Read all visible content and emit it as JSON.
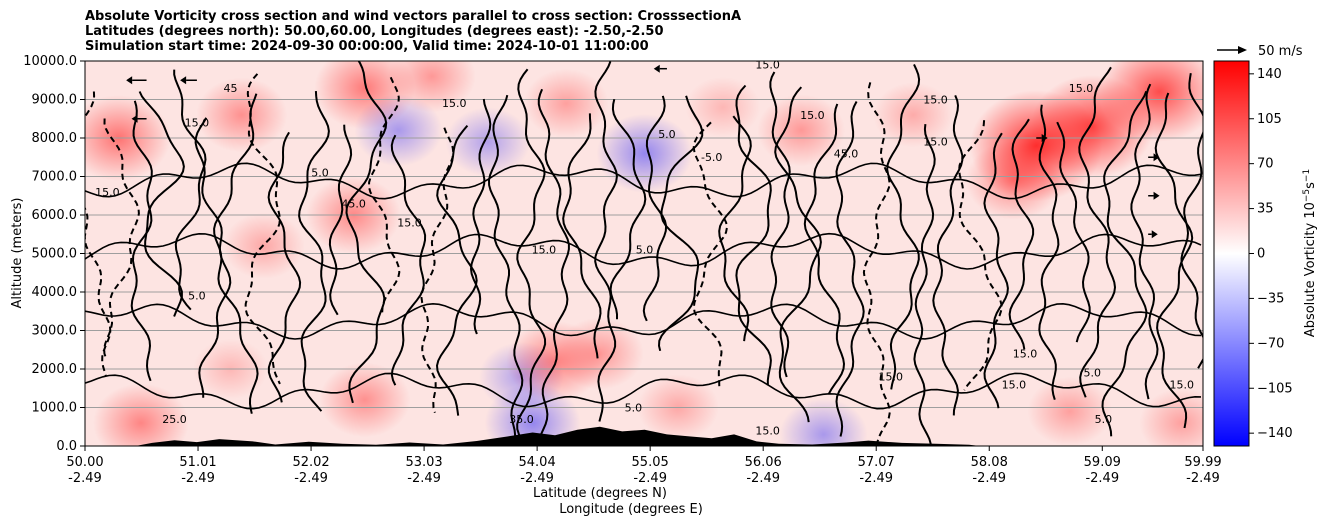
{
  "title_lines": [
    "Absolute Vorticity cross section and wind vectors parallel to cross section: CrosssectionA",
    "Latitudes (degrees north): 50.00,60.00, Longitudes (degrees east): -2.50,-2.50",
    "Simulation start time: 2024-09-30 00:00:00, Valid time: 2024-10-01 11:00:00"
  ],
  "chart_data": {
    "type": "heatmap",
    "ylabel": "Altitude (meters)",
    "xlabel_1": "Latitude (degrees N)",
    "xlabel_2": "Longitude (degrees E)",
    "ylim": [
      0,
      10000
    ],
    "xlim": [
      50.0,
      59.99
    ],
    "y_ticks": [
      {
        "v": 0,
        "label": "0.0"
      },
      {
        "v": 1000,
        "label": "1000.0"
      },
      {
        "v": 2000,
        "label": "2000.0"
      },
      {
        "v": 3000,
        "label": "3000.0"
      },
      {
        "v": 4000,
        "label": "4000.0"
      },
      {
        "v": 5000,
        "label": "5000.0"
      },
      {
        "v": 6000,
        "label": "6000.0"
      },
      {
        "v": 7000,
        "label": "7000.0"
      },
      {
        "v": 8000,
        "label": "8000.0"
      },
      {
        "v": 9000,
        "label": "9000.0"
      },
      {
        "v": 10000,
        "label": "10000.0"
      }
    ],
    "x_ticks": [
      {
        "v": 50.0,
        "lat": "50.00",
        "lon": "-2.49"
      },
      {
        "v": 51.01,
        "lat": "51.01",
        "lon": "-2.49"
      },
      {
        "v": 52.02,
        "lat": "52.02",
        "lon": "-2.49"
      },
      {
        "v": 53.03,
        "lat": "53.03",
        "lon": "-2.49"
      },
      {
        "v": 54.04,
        "lat": "54.04",
        "lon": "-2.49"
      },
      {
        "v": 55.05,
        "lat": "55.05",
        "lon": "-2.49"
      },
      {
        "v": 56.06,
        "lat": "56.06",
        "lon": "-2.49"
      },
      {
        "v": 57.07,
        "lat": "57.07",
        "lon": "-2.49"
      },
      {
        "v": 58.08,
        "lat": "58.08",
        "lon": "-2.49"
      },
      {
        "v": 59.09,
        "lat": "59.09",
        "lon": "-2.49"
      },
      {
        "v": 59.99,
        "lat": "59.99",
        "lon": "-2.49"
      }
    ],
    "colorbar": {
      "label": "Absolute Vorticity 10^-5 s^-1",
      "range": [
        -150,
        150
      ],
      "ticks": [
        {
          "v": 140,
          "label": "140"
        },
        {
          "v": 105,
          "label": "105"
        },
        {
          "v": 70,
          "label": "70"
        },
        {
          "v": 35,
          "label": "35"
        },
        {
          "v": 0,
          "label": "0"
        },
        {
          "v": -35,
          "label": "−35"
        },
        {
          "v": -70,
          "label": "−70"
        },
        {
          "v": -105,
          "label": "−105"
        },
        {
          "v": -140,
          "label": "−140"
        }
      ],
      "color_negative": "#0000ff",
      "color_zero": "#ffffff",
      "color_positive": "#ff0000"
    },
    "wind_legend": "50 m/s",
    "vorticity_blobs": [
      {
        "x": 50.3,
        "y": 8000,
        "v": 30
      },
      {
        "x": 51.4,
        "y": 8600,
        "v": 22
      },
      {
        "x": 52.5,
        "y": 9300,
        "v": 28
      },
      {
        "x": 52.8,
        "y": 8200,
        "v": -20
      },
      {
        "x": 53.1,
        "y": 9600,
        "v": 20
      },
      {
        "x": 53.6,
        "y": 7900,
        "v": -18
      },
      {
        "x": 54.3,
        "y": 8900,
        "v": 18
      },
      {
        "x": 55.0,
        "y": 7600,
        "v": -25
      },
      {
        "x": 55.7,
        "y": 8800,
        "v": 12
      },
      {
        "x": 56.4,
        "y": 8200,
        "v": 20
      },
      {
        "x": 57.4,
        "y": 8600,
        "v": 15
      },
      {
        "x": 58.3,
        "y": 6900,
        "v": 25
      },
      {
        "x": 58.5,
        "y": 7800,
        "v": 48
      },
      {
        "x": 59.0,
        "y": 8300,
        "v": 42
      },
      {
        "x": 59.6,
        "y": 9200,
        "v": 40
      },
      {
        "x": 52.4,
        "y": 6000,
        "v": 24
      },
      {
        "x": 51.6,
        "y": 5200,
        "v": 16
      },
      {
        "x": 53.9,
        "y": 1800,
        "v": -18
      },
      {
        "x": 54.2,
        "y": 2200,
        "v": 26
      },
      {
        "x": 54.6,
        "y": 2400,
        "v": 20
      },
      {
        "x": 54.0,
        "y": 600,
        "v": -25
      },
      {
        "x": 56.6,
        "y": 300,
        "v": -20
      },
      {
        "x": 52.5,
        "y": 1200,
        "v": 22
      },
      {
        "x": 50.5,
        "y": 600,
        "v": 25
      },
      {
        "x": 58.8,
        "y": 900,
        "v": 18
      },
      {
        "x": 59.8,
        "y": 600,
        "v": 18
      },
      {
        "x": 55.3,
        "y": 1000,
        "v": 16
      },
      {
        "x": 51.3,
        "y": 2000,
        "v": 12
      }
    ],
    "contour_labels": [
      {
        "x": 51.0,
        "y": 3800,
        "label": "5.0"
      },
      {
        "x": 52.9,
        "y": 5700,
        "label": "15.0"
      },
      {
        "x": 54.1,
        "y": 5000,
        "label": "15.0"
      },
      {
        "x": 55.0,
        "y": 5000,
        "label": "5.0"
      },
      {
        "x": 57.2,
        "y": 1700,
        "label": "15.0"
      },
      {
        "x": 58.4,
        "y": 2300,
        "label": "15.0"
      },
      {
        "x": 58.3,
        "y": 1500,
        "label": "15.0"
      },
      {
        "x": 57.6,
        "y": 7800,
        "label": "15.0"
      },
      {
        "x": 57.6,
        "y": 8900,
        "label": "15.0"
      },
      {
        "x": 56.5,
        "y": 8500,
        "label": "15.0"
      },
      {
        "x": 55.6,
        "y": 7400,
        "label": "-5.0"
      },
      {
        "x": 56.1,
        "y": 300,
        "label": "15.0"
      },
      {
        "x": 52.4,
        "y": 6200,
        "label": "45.0"
      },
      {
        "x": 51.0,
        "y": 8300,
        "label": "15.0"
      },
      {
        "x": 56.1,
        "y": 9800,
        "label": "15.0"
      },
      {
        "x": 59.8,
        "y": 1500,
        "label": "15.0"
      },
      {
        "x": 50.8,
        "y": 600,
        "label": "25.0"
      },
      {
        "x": 53.9,
        "y": 600,
        "label": "35.0"
      },
      {
        "x": 54.9,
        "y": 900,
        "label": "5.0"
      },
      {
        "x": 59.1,
        "y": 600,
        "label": "5.0"
      },
      {
        "x": 51.3,
        "y": 9200,
        "label": "45"
      },
      {
        "x": 56.8,
        "y": 7500,
        "label": "45.0"
      },
      {
        "x": 59.0,
        "y": 1800,
        "label": "5.0"
      },
      {
        "x": 50.2,
        "y": 6500,
        "label": "15.0"
      },
      {
        "x": 55.2,
        "y": 8000,
        "label": "5.0"
      },
      {
        "x": 53.3,
        "y": 8800,
        "label": "15.0"
      },
      {
        "x": 52.1,
        "y": 7000,
        "label": "5.0"
      },
      {
        "x": 58.9,
        "y": 9200,
        "label": "15.0"
      }
    ],
    "terrain_profile": [
      {
        "x": 50.0,
        "h": 0
      },
      {
        "x": 50.45,
        "h": 0
      },
      {
        "x": 50.6,
        "h": 80
      },
      {
        "x": 50.8,
        "h": 150
      },
      {
        "x": 51.0,
        "h": 100
      },
      {
        "x": 51.2,
        "h": 180
      },
      {
        "x": 51.5,
        "h": 120
      },
      {
        "x": 51.7,
        "h": 40
      },
      {
        "x": 52.0,
        "h": 110
      },
      {
        "x": 52.3,
        "h": 60
      },
      {
        "x": 52.6,
        "h": 30
      },
      {
        "x": 52.9,
        "h": 90
      },
      {
        "x": 53.2,
        "h": 40
      },
      {
        "x": 53.5,
        "h": 130
      },
      {
        "x": 53.8,
        "h": 260
      },
      {
        "x": 54.0,
        "h": 350
      },
      {
        "x": 54.2,
        "h": 280
      },
      {
        "x": 54.4,
        "h": 420
      },
      {
        "x": 54.6,
        "h": 500
      },
      {
        "x": 54.8,
        "h": 380
      },
      {
        "x": 55.0,
        "h": 420
      },
      {
        "x": 55.2,
        "h": 300
      },
      {
        "x": 55.4,
        "h": 250
      },
      {
        "x": 55.6,
        "h": 200
      },
      {
        "x": 55.8,
        "h": 300
      },
      {
        "x": 56.0,
        "h": 120
      },
      {
        "x": 56.2,
        "h": 60
      },
      {
        "x": 56.5,
        "h": 40
      },
      {
        "x": 56.8,
        "h": 90
      },
      {
        "x": 57.0,
        "h": 140
      },
      {
        "x": 57.3,
        "h": 80
      },
      {
        "x": 57.6,
        "h": 60
      },
      {
        "x": 57.9,
        "h": 30
      },
      {
        "x": 58.0,
        "h": 0
      },
      {
        "x": 59.99,
        "h": 0
      }
    ],
    "wind_arrows": [
      {
        "x": 50.55,
        "y": 9500,
        "u": -8
      },
      {
        "x": 51.0,
        "y": 9500,
        "u": -6
      },
      {
        "x": 50.55,
        "y": 8500,
        "u": -5
      },
      {
        "x": 55.2,
        "y": 9800,
        "u": -4
      },
      {
        "x": 58.5,
        "y": 8000,
        "u": 3
      },
      {
        "x": 59.5,
        "y": 7500,
        "u": 3
      },
      {
        "x": 59.5,
        "y": 6500,
        "u": 3
      },
      {
        "x": 59.5,
        "y": 5500,
        "u": 2
      }
    ]
  }
}
